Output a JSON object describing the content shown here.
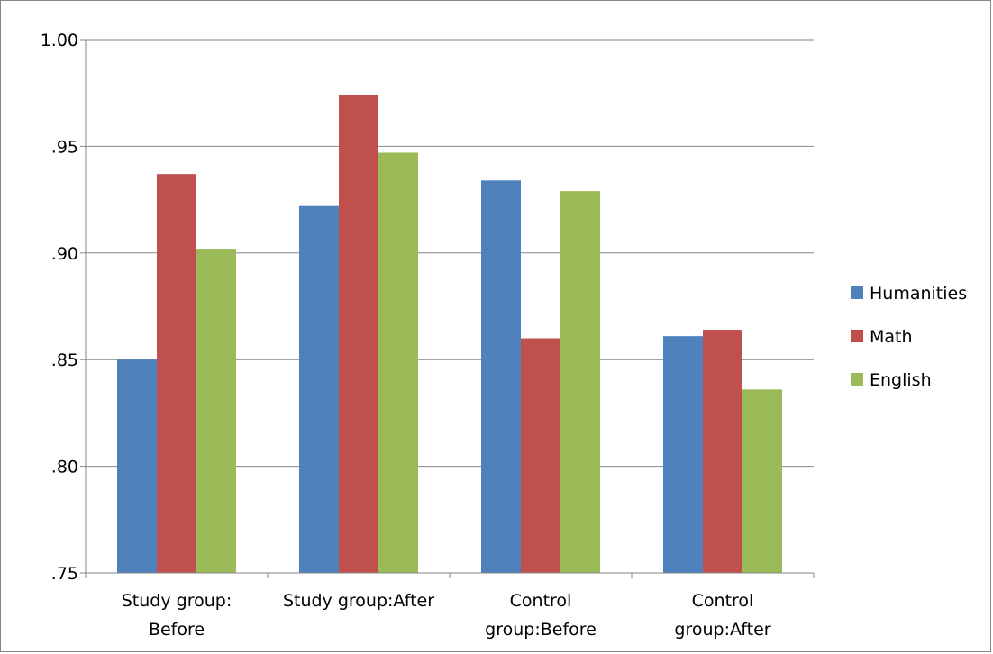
{
  "chart_data": {
    "type": "bar",
    "title": "",
    "xlabel": "",
    "ylabel": "",
    "categories": [
      [
        "Study group:",
        "Before"
      ],
      [
        "Study group:After"
      ],
      [
        "Control",
        "group:Before"
      ],
      [
        "Control",
        "group:After"
      ]
    ],
    "series": [
      {
        "name": "Humanities",
        "color": "#4F81BD",
        "values": [
          0.85,
          0.922,
          0.934,
          0.861
        ]
      },
      {
        "name": "Math",
        "color": "#C0504D",
        "values": [
          0.937,
          0.974,
          0.86,
          0.864
        ]
      },
      {
        "name": "English",
        "color": "#9BBB59",
        "values": [
          0.902,
          0.947,
          0.929,
          0.836
        ]
      }
    ],
    "ylim": [
      0.75,
      1.0
    ],
    "yticks": [
      {
        "value": 1.0,
        "label": "1.00"
      },
      {
        "value": 0.95,
        "label": ".95"
      },
      {
        "value": 0.9,
        "label": ".90"
      },
      {
        "value": 0.85,
        "label": ".85"
      },
      {
        "value": 0.8,
        "label": ".80"
      },
      {
        "value": 0.75,
        "label": ".75"
      }
    ],
    "grid": true,
    "legend_position": "right"
  }
}
